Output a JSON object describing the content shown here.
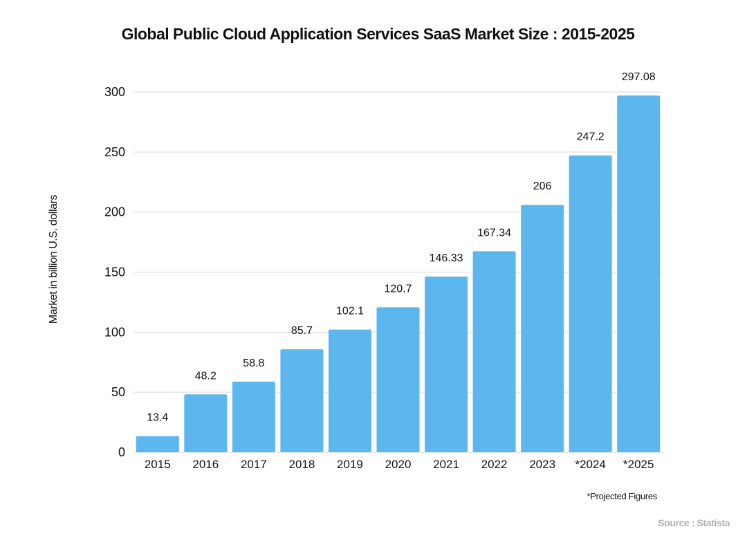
{
  "chart_data": {
    "type": "bar",
    "title": "Global Public Cloud Application Services SaaS Market Size : 2015-2025",
    "xlabel": "",
    "ylabel": "Market in billion U.S. dollars",
    "categories": [
      "2015",
      "2016",
      "2017",
      "2018",
      "2019",
      "2020",
      "2021",
      "2022",
      "2023",
      "*2024",
      "*2025"
    ],
    "values": [
      13.4,
      48.2,
      58.8,
      85.7,
      102.1,
      120.7,
      146.33,
      167.34,
      206,
      247.2,
      297.08
    ],
    "data_labels": [
      "13.4",
      "48.2",
      "58.8",
      "85.7",
      "102.1",
      "120.7",
      "146.33",
      "167.34",
      "206",
      "247.2",
      "297.08"
    ],
    "ylim": [
      0,
      300
    ],
    "yticks": [
      0,
      50,
      100,
      150,
      200,
      250,
      300
    ],
    "grid": true,
    "bar_color": "#5DB7EF",
    "grid_color": "#d9d9d9",
    "note": "*Projected Figures",
    "source": "Source : Statista"
  }
}
